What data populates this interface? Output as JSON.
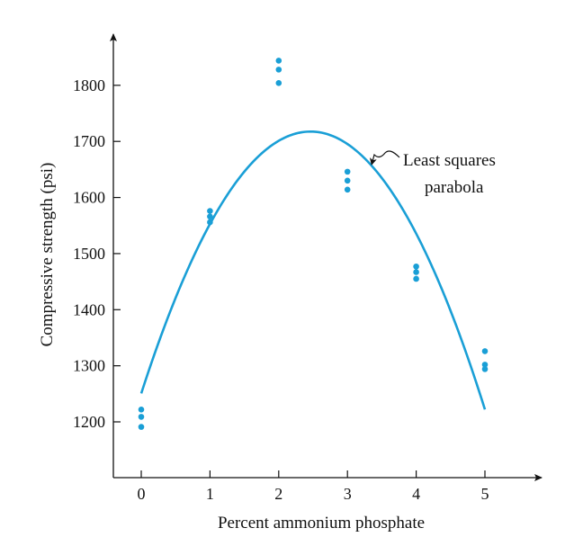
{
  "chart_data": {
    "type": "scatter",
    "xlabel": "Percent ammonium phosphate",
    "ylabel": "Compressive strength (psi)",
    "xlim": [
      -0.35,
      5.85
    ],
    "ylim": [
      1100,
      1890
    ],
    "x_ticks": [
      0,
      1,
      2,
      3,
      4,
      5
    ],
    "y_ticks": [
      1200,
      1300,
      1400,
      1500,
      1600,
      1700,
      1800
    ],
    "grid": false,
    "series": [
      {
        "type": "scatter",
        "color": "#1a9fd6",
        "points": [
          {
            "x": 0,
            "y": 1222
          },
          {
            "x": 0,
            "y": 1209
          },
          {
            "x": 0,
            "y": 1191
          },
          {
            "x": 1,
            "y": 1576
          },
          {
            "x": 1,
            "y": 1566
          },
          {
            "x": 1,
            "y": 1556
          },
          {
            "x": 2,
            "y": 1844
          },
          {
            "x": 2,
            "y": 1828
          },
          {
            "x": 2,
            "y": 1804
          },
          {
            "x": 3,
            "y": 1646
          },
          {
            "x": 3,
            "y": 1630
          },
          {
            "x": 3,
            "y": 1614
          },
          {
            "x": 4,
            "y": 1477
          },
          {
            "x": 4,
            "y": 1467
          },
          {
            "x": 4,
            "y": 1455
          },
          {
            "x": 5,
            "y": 1326
          },
          {
            "x": 5,
            "y": 1302
          },
          {
            "x": 5,
            "y": 1294
          }
        ]
      },
      {
        "type": "line",
        "color": "#1a9fd6",
        "x_range": [
          0,
          5
        ],
        "points": [
          {
            "x": 0,
            "y": 1245
          },
          {
            "x": 1,
            "y": 1560
          },
          {
            "x": 2,
            "y": 1705
          },
          {
            "x": 2.5,
            "y": 1720
          },
          {
            "x": 3,
            "y": 1693
          },
          {
            "x": 4,
            "y": 1522
          },
          {
            "x": 5,
            "y": 1230
          }
        ]
      }
    ],
    "annotations": [
      {
        "text": "Least squares",
        "arrow_to": {
          "x": 3.3,
          "y": 1683
        }
      },
      {
        "text": "parabola"
      }
    ]
  }
}
